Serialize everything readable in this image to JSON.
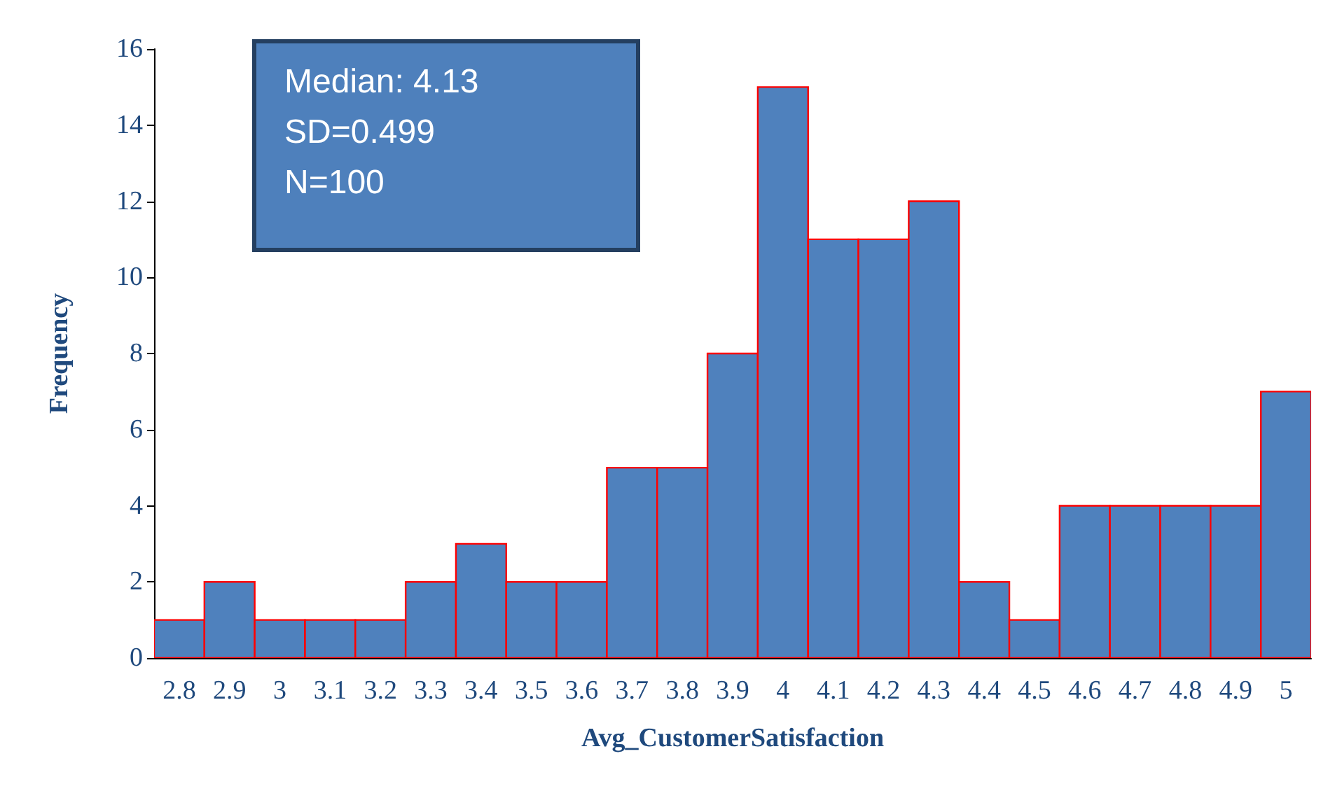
{
  "chart_data": {
    "type": "histogram",
    "xlabel": "Avg_CustomerSatisfaction",
    "ylabel": "Frequency",
    "annotations": [
      "Median: 4.13\nSD=0.499\nN=100"
    ],
    "bins": [
      2.75,
      2.85,
      2.95,
      3.05,
      3.15,
      3.25,
      3.35,
      3.45,
      3.55,
      3.65,
      3.75,
      3.85,
      3.95,
      4.05,
      4.15,
      4.25,
      4.35,
      4.45,
      4.55,
      4.65,
      4.75,
      4.85,
      4.95,
      5.05
    ],
    "values": [
      1,
      2,
      1,
      1,
      1,
      2,
      3,
      2,
      2,
      5,
      5,
      8,
      15,
      11,
      11,
      12,
      2,
      1,
      4,
      4,
      4,
      4,
      7
    ],
    "color": "#4f81bd",
    "xlim": [
      2.75,
      5.05
    ],
    "xticks": [
      2.8,
      2.9,
      3,
      3.1,
      3.2,
      3.3,
      3.4,
      3.5,
      3.6,
      3.7,
      3.8,
      3.9,
      4,
      4.1,
      4.2,
      4.3,
      4.4,
      4.5,
      4.6,
      4.7,
      4.8,
      4.9,
      5
    ],
    "ylim": [
      0,
      16
    ],
    "yticks": [
      0,
      2,
      4,
      6,
      8,
      10,
      12,
      14,
      16
    ],
    "grid": false
  }
}
